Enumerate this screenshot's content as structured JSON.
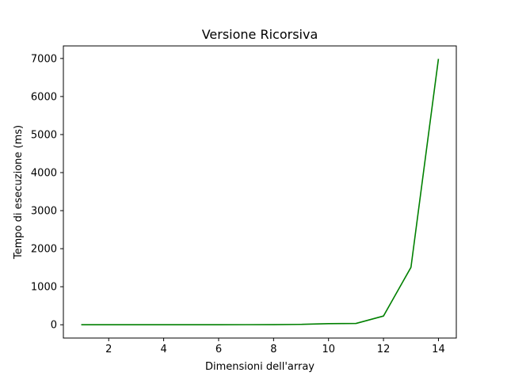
{
  "chart_data": {
    "type": "line",
    "title": "Versione Ricorsiva",
    "xlabel": "Dimensioni dell'array",
    "ylabel": "Tempo di esecuzione (ms)",
    "xlim": [
      0.35,
      14.65
    ],
    "ylim": [
      -349,
      7330
    ],
    "xticks": [
      2,
      4,
      6,
      8,
      10,
      12,
      14
    ],
    "yticks": [
      0,
      1000,
      2000,
      3000,
      4000,
      5000,
      6000,
      7000
    ],
    "grid": false,
    "series": [
      {
        "color": "#008000",
        "x": [
          1,
          2,
          3,
          4,
          5,
          6,
          7,
          8,
          9,
          10,
          11,
          12,
          13,
          14
        ],
        "y": [
          0,
          0,
          0,
          0,
          0,
          1,
          2,
          4,
          10,
          30,
          35,
          230,
          1510,
          6990
        ]
      }
    ]
  }
}
